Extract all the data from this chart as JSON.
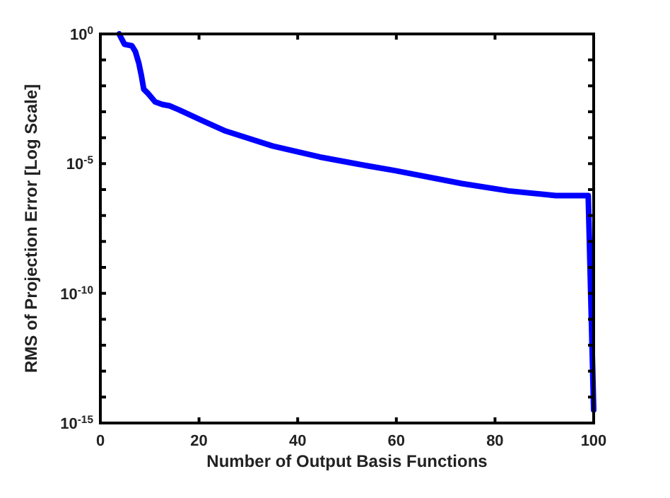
{
  "chart_data": {
    "type": "line",
    "xlabel": "Number of Output Basis Functions",
    "ylabel": "RMS of Projection Error [Log Scale]",
    "log": "y",
    "x": [
      3.8,
      4.9,
      6.4,
      7.1,
      7.8,
      8.3,
      8.8,
      9.7,
      11.1,
      12.6,
      14,
      15.9,
      20.7,
      25.4,
      34.9,
      44.5,
      54,
      59.7,
      73.3,
      82.8,
      92.3,
      98.9,
      100
    ],
    "series": [
      {
        "color": "#0000ff",
        "values": [
          1,
          0.4,
          0.35,
          0.21,
          0.074,
          0.026,
          0.0074,
          0.005,
          0.0024,
          0.0019,
          0.0017,
          0.0012,
          0.00045,
          0.00018,
          4.8e-05,
          1.8e-05,
          8.3e-06,
          5.4e-06,
          1.7e-06,
          8.9e-07,
          5.9e-07,
          5.9e-07,
          3.2e-15
        ]
      }
    ],
    "xlim": [
      0,
      100
    ],
    "xticks": [
      0,
      20,
      40,
      60,
      80,
      100
    ],
    "ylim": [
      1e-15,
      1
    ],
    "yticks": [
      {
        "value": 1,
        "label": "10$^{0}$"
      },
      {
        "value": 0.1,
        "label": null
      },
      {
        "value": 0.01,
        "label": null
      },
      {
        "value": 0.001,
        "label": null
      },
      {
        "value": 0.0001,
        "label": null
      },
      {
        "value": 1e-05,
        "label": "10$^{-5}$"
      },
      {
        "value": 1e-06,
        "label": null
      },
      {
        "value": 1e-07,
        "label": null
      },
      {
        "value": 1e-08,
        "label": null
      },
      {
        "value": 1e-09,
        "label": null
      },
      {
        "value": 1e-10,
        "label": "10$^{-10}$"
      },
      {
        "value": 1e-11,
        "label": null
      },
      {
        "value": 1e-12,
        "label": null
      },
      {
        "value": 1e-13,
        "label": null
      },
      {
        "value": 1e-14,
        "label": null
      },
      {
        "value": 1e-15,
        "label": "10$^{-15}$"
      }
    ],
    "marker": "none",
    "line_style": "solid"
  }
}
